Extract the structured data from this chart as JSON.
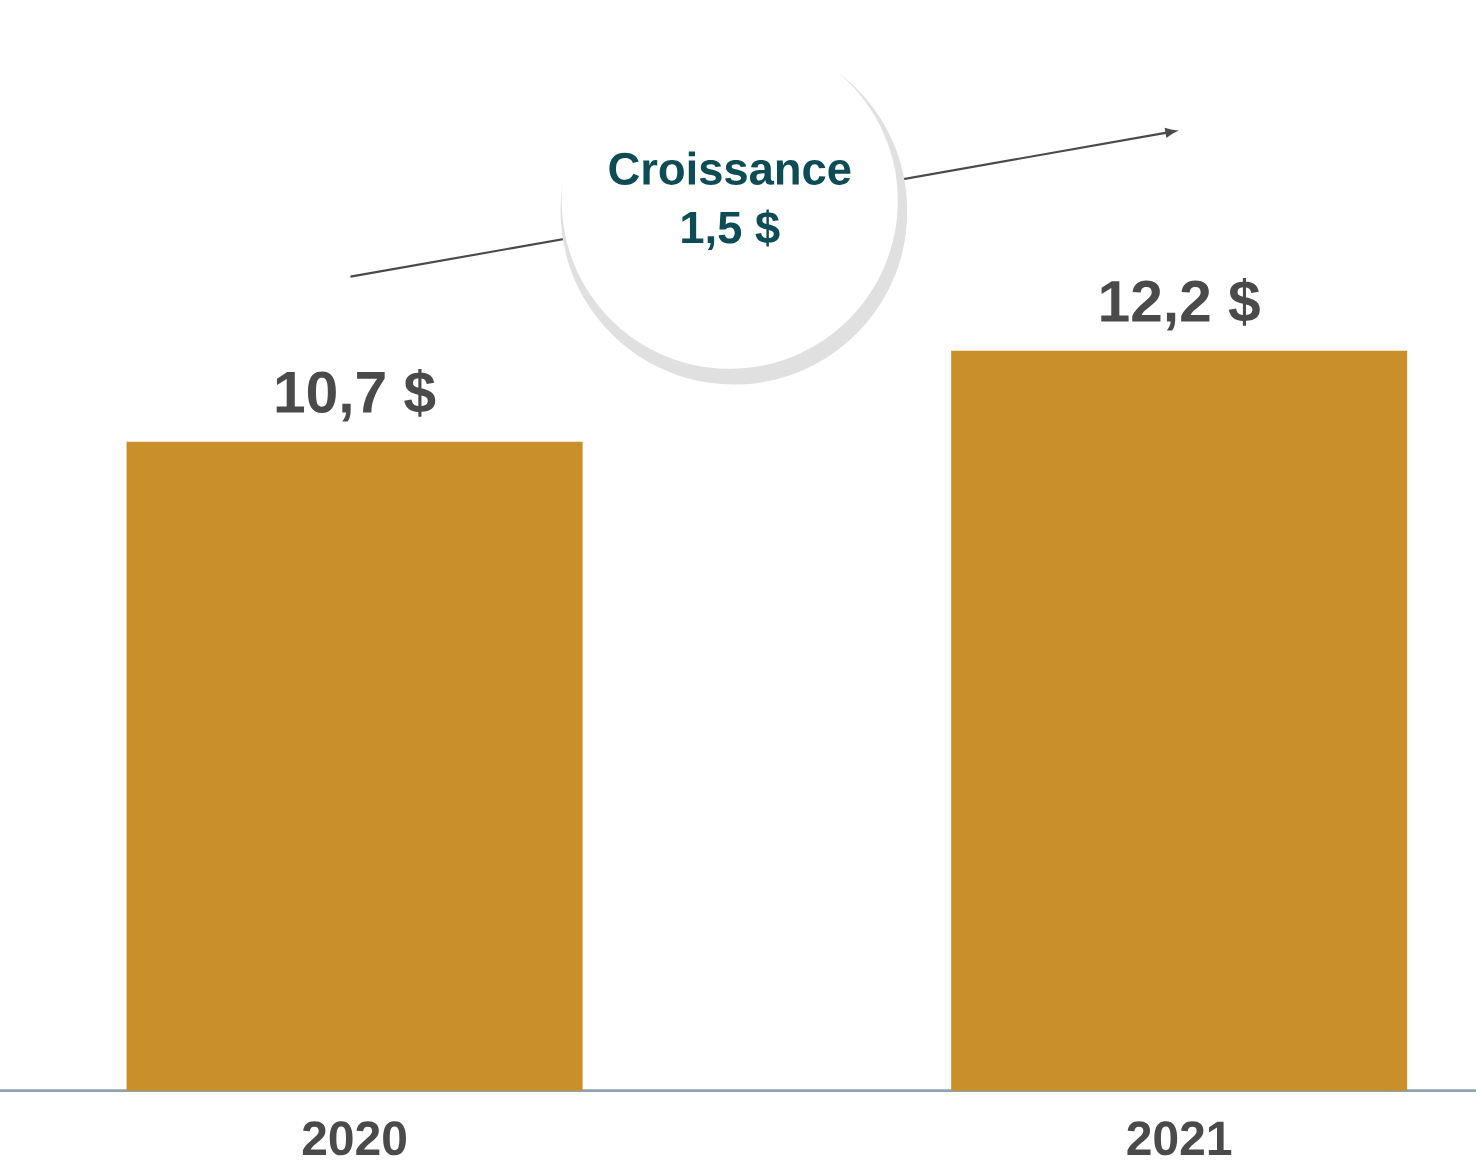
{
  "chart_data": {
    "type": "bar",
    "categories": [
      "2020",
      "2021"
    ],
    "values": [
      10.7,
      12.2
    ],
    "value_labels": [
      "10,7 $",
      "12,2 $"
    ],
    "color": "#c98f2a",
    "annotations": [
      "Croissance",
      "1,5 $"
    ]
  }
}
